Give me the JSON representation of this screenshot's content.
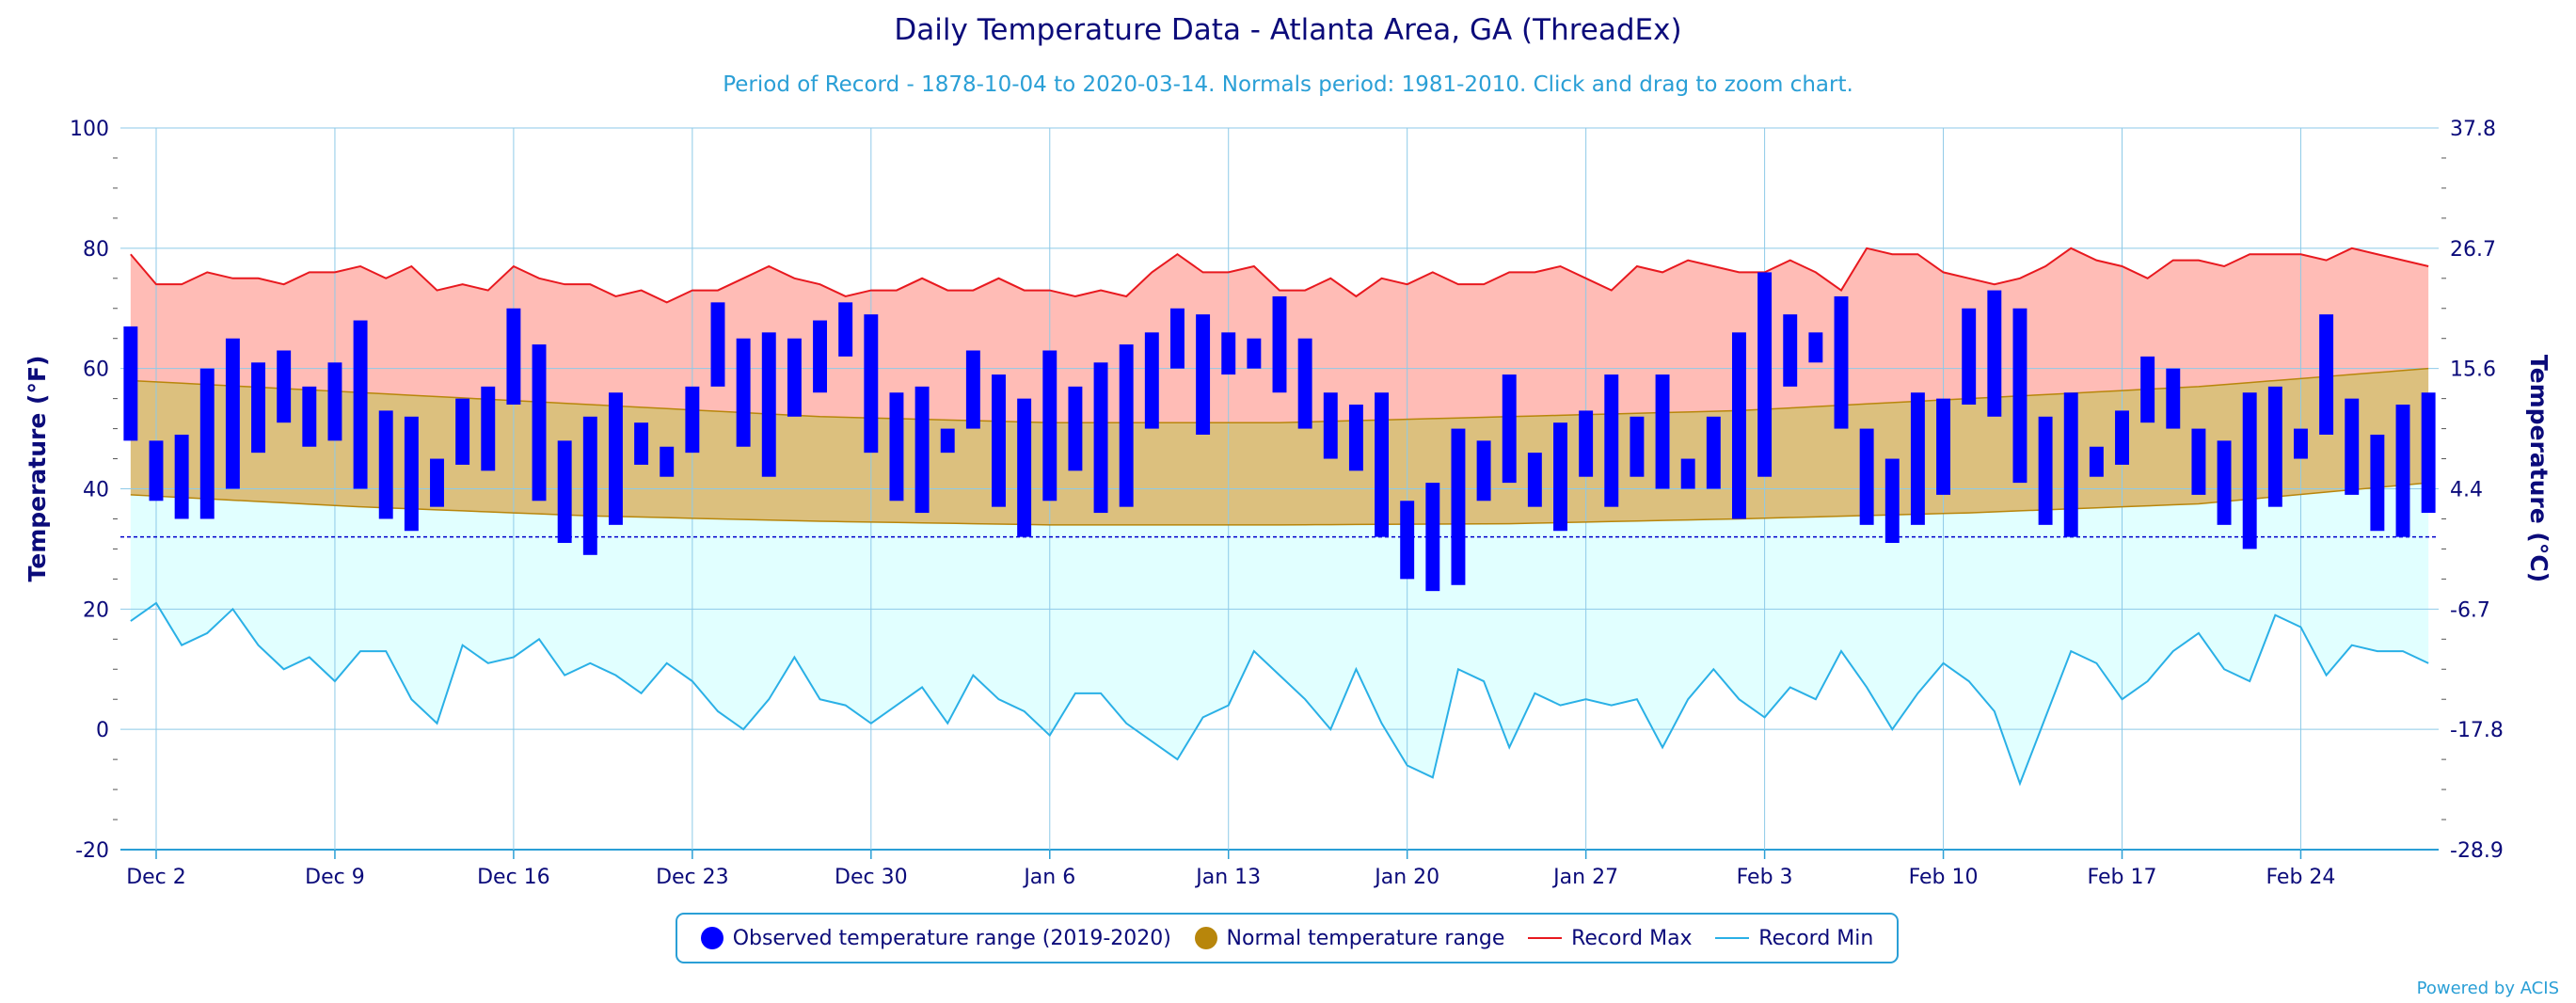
{
  "title": "Daily Temperature Data - Atlanta Area, GA (ThreadEx)",
  "subtitle": "Period of Record - 1878-10-04 to 2020-03-14. Normals period: 1981-2010. Click and drag to zoom chart.",
  "credit": "Powered by ACIS",
  "chart_data": {
    "type": "bar",
    "x_start": "2019-12-01",
    "x_end": "2020-02-29",
    "xticks": [
      "Dec 2",
      "Dec 9",
      "Dec 16",
      "Dec 23",
      "Dec 30",
      "Jan 6",
      "Jan 13",
      "Jan 20",
      "Jan 27",
      "Feb 3",
      "Feb 10",
      "Feb 17",
      "Feb 24"
    ],
    "ylabel": "Temperature (°F)",
    "ylabel_right": "Temperature (°C)",
    "ylim": [
      -20,
      100
    ],
    "yticks": [
      "-20",
      "0",
      "20",
      "40",
      "60",
      "80",
      "100"
    ],
    "yticks_right": [
      "-28.9",
      "-17.8",
      "-6.7",
      "4.4",
      "15.6",
      "26.7",
      "37.8"
    ],
    "freezing_line": 32,
    "grid": true,
    "legend_position": "bottom",
    "colors": {
      "observed": "#0000ff",
      "normal": "#b8860b",
      "record_max": "#e8191f",
      "record_min": "#2ab0e6",
      "record_max_fill": "#ffbcb6",
      "normal_fill": "#dcc07e",
      "record_min_fill": "#e1ffff"
    },
    "series": [
      {
        "name": "Observed temperature range (2019-2020)",
        "high": [
          67,
          48,
          49,
          60,
          65,
          61,
          63,
          57,
          61,
          68,
          53,
          52,
          45,
          55,
          57,
          70,
          64,
          48,
          52,
          56,
          51,
          47,
          57,
          71,
          65,
          66,
          65,
          68,
          71,
          69,
          56,
          57,
          50,
          63,
          59,
          55,
          63,
          57,
          61,
          64,
          66,
          70,
          69,
          66,
          65,
          72,
          65,
          56,
          54,
          56,
          38,
          41,
          50,
          48,
          59,
          46,
          51,
          53,
          59,
          52,
          59,
          45,
          52,
          66,
          76,
          69,
          66,
          72,
          50,
          45,
          56,
          55,
          70,
          73,
          70,
          52,
          56,
          47,
          53,
          62,
          60,
          50,
          48,
          56,
          57,
          50,
          69,
          55,
          49,
          54,
          56
        ],
        "low": [
          48,
          38,
          35,
          35,
          40,
          46,
          51,
          47,
          48,
          40,
          35,
          33,
          37,
          44,
          43,
          54,
          38,
          31,
          29,
          34,
          44,
          42,
          46,
          57,
          47,
          42,
          52,
          56,
          62,
          46,
          38,
          36,
          46,
          50,
          37,
          32,
          38,
          43,
          36,
          37,
          50,
          60,
          49,
          59,
          60,
          56,
          50,
          45,
          43,
          32,
          25,
          23,
          24,
          38,
          41,
          37,
          33,
          42,
          37,
          42,
          40,
          40,
          40,
          35,
          42,
          57,
          61,
          50,
          34,
          31,
          34,
          39,
          54,
          52,
          41,
          34,
          32,
          42,
          44,
          51,
          50,
          39,
          34,
          30,
          37,
          45,
          49,
          39,
          33,
          32,
          36
        ]
      },
      {
        "name": "Normal temperature range",
        "high": [
          58,
          56,
          54,
          52,
          51,
          51,
          52,
          53,
          55,
          57,
          60
        ],
        "low": [
          39,
          37,
          35.5,
          34.6,
          34,
          34,
          34.2,
          35,
          36,
          37.5,
          41
        ]
      },
      {
        "name": "Record Max",
        "values": [
          79,
          74,
          74,
          76,
          75,
          75,
          74,
          76,
          76,
          77,
          75,
          77,
          73,
          74,
          73,
          77,
          75,
          74,
          74,
          72,
          73,
          71,
          73,
          73,
          75,
          77,
          75,
          74,
          72,
          73,
          73,
          75,
          73,
          73,
          75,
          73,
          73,
          72,
          73,
          72,
          76,
          79,
          76,
          76,
          77,
          73,
          73,
          75,
          72,
          75,
          74,
          76,
          74,
          74,
          76,
          76,
          77,
          75,
          73,
          77,
          76,
          78,
          77,
          76,
          76,
          78,
          76,
          73,
          80,
          79,
          79,
          76,
          75,
          74,
          75,
          77,
          80,
          78,
          77,
          75,
          78,
          78,
          77,
          79,
          79,
          79,
          78,
          80,
          79,
          78,
          77
        ]
      },
      {
        "name": "Record Min",
        "values": [
          18,
          21,
          14,
          16,
          20,
          14,
          10,
          12,
          8,
          13,
          13,
          5,
          1,
          14,
          11,
          12,
          15,
          9,
          11,
          9,
          6,
          11,
          8,
          3,
          0,
          5,
          12,
          5,
          4,
          1,
          4,
          7,
          1,
          9,
          5,
          3,
          -1,
          6,
          6,
          1,
          -2,
          -5,
          2,
          4,
          13,
          9,
          5,
          0,
          10,
          1,
          -6,
          -8,
          10,
          8,
          -3,
          6,
          4,
          5,
          4,
          5,
          -3,
          5,
          10,
          5,
          2,
          7,
          5,
          13,
          7,
          0,
          6,
          11,
          8,
          3,
          -9,
          2,
          13,
          11,
          5,
          8,
          13,
          16,
          10,
          8,
          19,
          17,
          9,
          14,
          13,
          13,
          11
        ]
      }
    ]
  }
}
